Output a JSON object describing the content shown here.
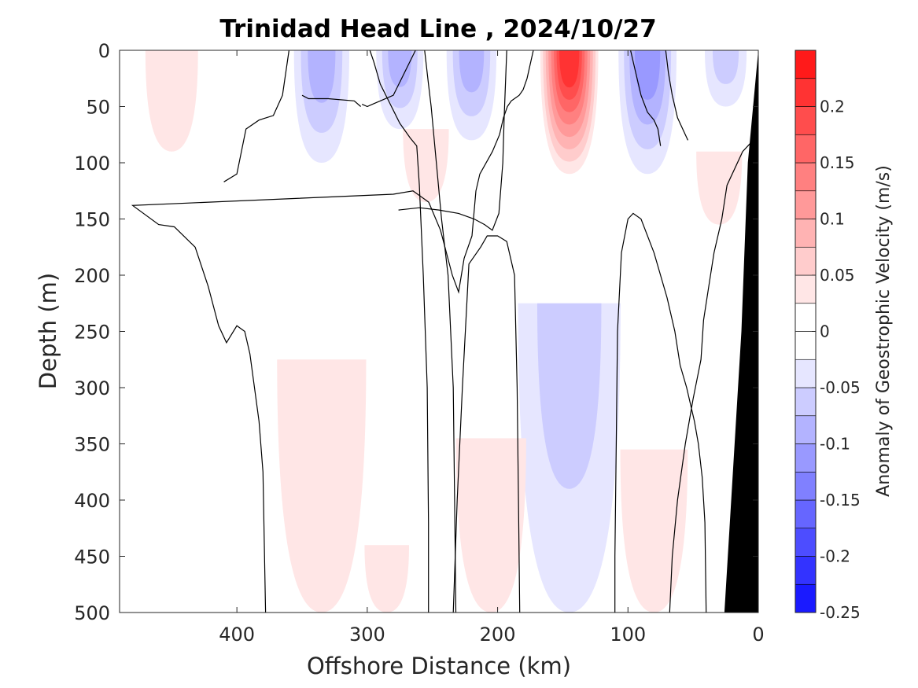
{
  "chart_data": {
    "type": "contour",
    "title": "Trinidad Head Line , 2024/10/27",
    "xlabel": "Offshore Distance (km)",
    "ylabel": "Depth (m)",
    "xlim": [
      490,
      0
    ],
    "ylim": [
      0,
      500
    ],
    "x_reversed": true,
    "y_reversed": true,
    "xticks": [
      "400",
      "300",
      "200",
      "100",
      "0"
    ],
    "yticks": [
      "0",
      "50",
      "100",
      "150",
      "200",
      "250",
      "300",
      "350",
      "400",
      "450",
      "500"
    ],
    "xtick_values": [
      400,
      300,
      200,
      100,
      0
    ],
    "ytick_values": [
      0,
      50,
      100,
      150,
      200,
      250,
      300,
      350,
      400,
      450,
      500
    ],
    "colorbar": {
      "label": "Anomaly of Geostrophic Velocity (m/s)",
      "range": [
        -0.25,
        0.25
      ],
      "levels": [
        -0.25,
        -0.225,
        -0.2,
        -0.175,
        -0.15,
        -0.125,
        -0.1,
        -0.075,
        -0.05,
        -0.025,
        0,
        0.025,
        0.05,
        0.075,
        0.1,
        0.125,
        0.15,
        0.175,
        0.2,
        0.225,
        0.25
      ],
      "ticks": [
        "-0.25",
        "-0.2",
        "-0.15",
        "-0.1",
        "-0.05",
        "0",
        "0.05",
        "0.1",
        "0.15",
        "0.2"
      ],
      "tick_values": [
        -0.25,
        -0.2,
        -0.15,
        -0.1,
        -0.05,
        0,
        0.05,
        0.1,
        0.15,
        0.2
      ],
      "colors": [
        "#0000ff",
        "#1a1aff",
        "#3333ff",
        "#4d4dff",
        "#6666ff",
        "#8080ff",
        "#9999ff",
        "#b3b3ff",
        "#ccccff",
        "#e6e6ff",
        "#ffffff",
        "#ffffff",
        "#ffe6e6",
        "#ffcccc",
        "#ffb3b3",
        "#ff9999",
        "#ff8080",
        "#ff6666",
        "#ff4d4d",
        "#ff3333",
        "#ff1a1a",
        "#ff0000"
      ]
    },
    "bathymetry_color": "#000000",
    "anomaly_features": [
      {
        "label": "surface jet",
        "x_center_km": 145,
        "depth_top_m": 0,
        "depth_bottom_m": 110,
        "peak_velocity": 0.225
      },
      {
        "label": "negative core",
        "x_center_km": 335,
        "depth_top_m": 0,
        "depth_bottom_m": 100,
        "peak_velocity": -0.1
      },
      {
        "label": "negative core",
        "x_center_km": 275,
        "depth_top_m": 0,
        "depth_bottom_m": 70,
        "peak_velocity": -0.1
      },
      {
        "label": "negative core",
        "x_center_km": 220,
        "depth_top_m": 0,
        "depth_bottom_m": 80,
        "peak_velocity": -0.1
      },
      {
        "label": "negative core",
        "x_center_km": 85,
        "depth_top_m": 0,
        "depth_bottom_m": 110,
        "peak_velocity": -0.125
      },
      {
        "label": "negative core",
        "x_center_km": 25,
        "depth_top_m": 0,
        "depth_bottom_m": 50,
        "peak_velocity": -0.075
      },
      {
        "label": "deep negative",
        "x_center_km": 145,
        "depth_top_m": 225,
        "depth_bottom_m": 500,
        "peak_velocity": -0.075
      },
      {
        "label": "positive patch",
        "x_center_km": 450,
        "depth_top_m": 0,
        "depth_bottom_m": 90,
        "peak_velocity": 0.05
      },
      {
        "label": "positive patch",
        "x_center_km": 335,
        "depth_top_m": 275,
        "depth_bottom_m": 500,
        "peak_velocity": 0.05
      },
      {
        "label": "positive patch",
        "x_center_km": 205,
        "depth_top_m": 345,
        "depth_bottom_m": 500,
        "peak_velocity": 0.05
      },
      {
        "label": "positive patch",
        "x_center_km": 80,
        "depth_top_m": 355,
        "depth_bottom_m": 500,
        "peak_velocity": 0.05
      },
      {
        "label": "positive patch",
        "x_center_km": 285,
        "depth_top_m": 440,
        "depth_bottom_m": 500,
        "peak_velocity": 0.05
      },
      {
        "label": "positive patch",
        "x_center_km": 255,
        "depth_top_m": 70,
        "depth_bottom_m": 135,
        "peak_velocity": 0.05
      },
      {
        "label": "positive patch",
        "x_center_km": 30,
        "depth_top_m": 90,
        "depth_bottom_m": 155,
        "peak_velocity": 0.05
      }
    ],
    "zero_contours": [
      [
        [
          410,
          117
        ],
        [
          400,
          110
        ],
        [
          393,
          70
        ],
        [
          383,
          62
        ],
        [
          372,
          58
        ],
        [
          365,
          40
        ],
        [
          360,
          0
        ]
      ],
      [
        [
          263,
          0
        ],
        [
          280,
          40
        ],
        [
          296,
          48
        ],
        [
          300,
          50
        ],
        [
          304,
          48
        ]
      ],
      [
        [
          305,
          50
        ],
        [
          310,
          45
        ],
        [
          330,
          43
        ],
        [
          345,
          43
        ],
        [
          350,
          40
        ]
      ],
      [
        [
          378,
          500
        ],
        [
          380,
          375
        ],
        [
          383,
          330
        ],
        [
          390,
          270
        ],
        [
          394,
          250
        ],
        [
          400,
          245
        ],
        [
          408,
          260
        ],
        [
          414,
          245
        ],
        [
          422,
          210
        ],
        [
          432,
          175
        ],
        [
          448,
          157
        ],
        [
          460,
          155
        ],
        [
          480,
          138
        ],
        [
          500,
          128
        ],
        [
          525,
          125
        ],
        [
          545,
          135
        ],
        [
          560,
          160
        ],
        [
          575,
          200
        ],
        [
          583,
          215
        ],
        [
          590,
          185
        ],
        [
          600,
          165
        ],
        [
          605,
          125
        ],
        [
          610,
          110
        ],
        [
          626,
          90
        ],
        [
          635,
          75
        ],
        [
          640,
          60
        ],
        [
          645,
          50
        ],
        [
          650,
          45
        ],
        [
          660,
          40
        ],
        [
          665,
          35
        ],
        [
          670,
          25
        ],
        [
          678,
          0
        ]
      ],
      [
        [
          253,
          500
        ],
        [
          253,
          420
        ],
        [
          254,
          300
        ],
        [
          257,
          200
        ],
        [
          260,
          120
        ],
        [
          262,
          85
        ],
        [
          267,
          78
        ],
        [
          275,
          65
        ],
        [
          290,
          30
        ],
        [
          295,
          10
        ],
        [
          298,
          0
        ]
      ],
      [
        [
          232,
          500
        ],
        [
          233,
          400
        ],
        [
          234,
          300
        ],
        [
          238,
          200
        ],
        [
          243,
          150
        ],
        [
          247,
          100
        ],
        [
          251,
          50
        ],
        [
          253,
          30
        ],
        [
          256,
          0
        ]
      ],
      [
        [
          183,
          500
        ],
        [
          184,
          400
        ],
        [
          185,
          300
        ],
        [
          187,
          200
        ],
        [
          193,
          170
        ],
        [
          200,
          165
        ],
        [
          208,
          165
        ],
        [
          213,
          175
        ],
        [
          222,
          190
        ],
        [
          227,
          300
        ],
        [
          231,
          400
        ],
        [
          234,
          500
        ]
      ],
      [
        [
          193,
          0
        ],
        [
          195,
          60
        ],
        [
          196,
          100
        ],
        [
          199,
          145
        ],
        [
          204,
          160
        ],
        [
          210,
          155
        ],
        [
          218,
          150
        ],
        [
          230,
          145
        ],
        [
          245,
          142
        ],
        [
          260,
          140
        ],
        [
          276,
          142
        ]
      ],
      [
        [
          40,
          500
        ],
        [
          41,
          420
        ],
        [
          43,
          380
        ],
        [
          46,
          350
        ],
        [
          49,
          330
        ],
        [
          55,
          300
        ],
        [
          60,
          280
        ],
        [
          64,
          250
        ],
        [
          70,
          220
        ],
        [
          80,
          180
        ],
        [
          90,
          150
        ],
        [
          96,
          145
        ],
        [
          100,
          150
        ],
        [
          105,
          180
        ],
        [
          108,
          250
        ],
        [
          109,
          350
        ],
        [
          110,
          450
        ],
        [
          110,
          500
        ]
      ],
      [
        [
          0,
          75
        ],
        [
          12,
          90
        ],
        [
          24,
          120
        ],
        [
          28,
          150
        ],
        [
          34,
          180
        ],
        [
          38,
          210
        ],
        [
          42,
          240
        ],
        [
          44,
          275
        ],
        [
          50,
          310
        ],
        [
          56,
          350
        ],
        [
          62,
          400
        ],
        [
          66,
          450
        ],
        [
          68,
          500
        ]
      ],
      [
        [
          98,
          0
        ],
        [
          94,
          20
        ],
        [
          90,
          40
        ],
        [
          85,
          55
        ],
        [
          80,
          62
        ],
        [
          77,
          70
        ],
        [
          75,
          85
        ]
      ],
      [
        [
          71,
          0
        ],
        [
          69,
          20
        ],
        [
          66,
          40
        ],
        [
          62,
          60
        ],
        [
          58,
          70
        ],
        [
          54,
          80
        ]
      ]
    ]
  }
}
